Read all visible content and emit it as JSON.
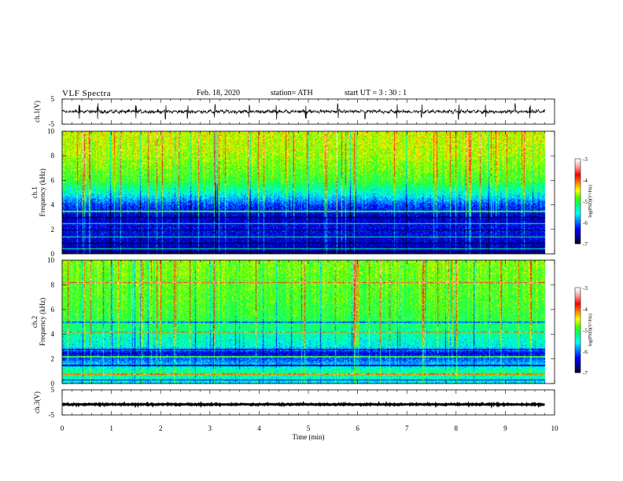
{
  "header": {
    "title": "VLF  Spectra",
    "date": "Feb. 18, 2020",
    "station": "station= ATH",
    "start": "start  UT  =   3  : 30 : 1"
  },
  "colors": {
    "colormap": [
      "#000000",
      "#0000a0",
      "#0000ff",
      "#0080ff",
      "#00ffff",
      "#00ff80",
      "#40ff00",
      "#ffff00",
      "#ff8000",
      "#ff0000",
      "#ff9999",
      "#ffffff"
    ]
  },
  "chart_data": [
    {
      "type": "line",
      "panel": "ch1-waveform",
      "ylabel": "ch.1(V)",
      "ylim": [
        -5,
        5
      ],
      "yticks": [
        "5",
        "-5"
      ],
      "xlim": [
        0,
        10
      ],
      "trace_end_min": 9.8,
      "baseline_v": 0,
      "spike_times_min": [
        0.35,
        0.72,
        1.5,
        2.1,
        2.55,
        3.1,
        3.8,
        4.35,
        4.95,
        5.6,
        6.15,
        6.8,
        7.3,
        8.05,
        8.6,
        9.2,
        9.5
      ]
    },
    {
      "type": "heatmap",
      "panel": "ch1-spectrogram",
      "ylabel": "ch.1\nFrequency (kHz)",
      "ylim": [
        0,
        10
      ],
      "yticks": [
        "0",
        "2",
        "4",
        "6",
        "8",
        "10"
      ],
      "xlim": [
        0,
        10
      ],
      "trace_end_min": 9.8,
      "colorbar": {
        "label": "log(PSD)(V²/Hz)",
        "range": [
          -7,
          -3
        ],
        "ticks": [
          "-3",
          "-4",
          "-5",
          "-6",
          "-7"
        ]
      },
      "profile_khz": [
        0,
        2,
        3,
        4,
        5,
        6,
        8,
        10
      ],
      "profile_level": [
        -6.6,
        -6.3,
        -6.5,
        -6.1,
        -5.4,
        -4.9,
        -4.6,
        -4.5
      ],
      "lines_khz": [
        0.2,
        0.45,
        0.9,
        1.4,
        2.0,
        2.5,
        3.0,
        3.5
      ]
    },
    {
      "type": "heatmap",
      "panel": "ch2-spectrogram",
      "ylabel": "ch.2\nFrequency (kHz)",
      "ylim": [
        0,
        10
      ],
      "yticks": [
        "0",
        "2",
        "4",
        "6",
        "8",
        "10"
      ],
      "xlim": [
        0,
        10
      ],
      "trace_end_min": 9.8,
      "colorbar": {
        "label": "log(PSD)(V²/Hz)",
        "range": [
          -7,
          -3
        ],
        "ticks": [
          "-3",
          "-4",
          "-5",
          "-6",
          "-7"
        ]
      },
      "profile_khz": [
        0,
        1,
        2,
        2.5,
        3,
        4,
        5,
        6,
        8,
        10
      ],
      "profile_level": [
        -5.6,
        -5.2,
        -6.0,
        -6.4,
        -5.5,
        -5.3,
        -5.0,
        -4.9,
        -4.8,
        -4.7
      ],
      "lines_khz": [
        0.3,
        0.8,
        1.5,
        2.2,
        2.8,
        4.2,
        5.0,
        8.2
      ]
    },
    {
      "type": "line",
      "panel": "ch3-waveform",
      "ylabel": "ch.3(V)",
      "xlabel": "Time  (min)",
      "ylim": [
        -5,
        5
      ],
      "yticks": [
        "5",
        "-5"
      ],
      "xlim": [
        0,
        10
      ],
      "xticks": [
        "0",
        "1",
        "2",
        "3",
        "4",
        "5",
        "6",
        "7",
        "8",
        "9",
        "10"
      ],
      "trace_end_min": 9.8,
      "baseline_v": -0.8
    }
  ]
}
